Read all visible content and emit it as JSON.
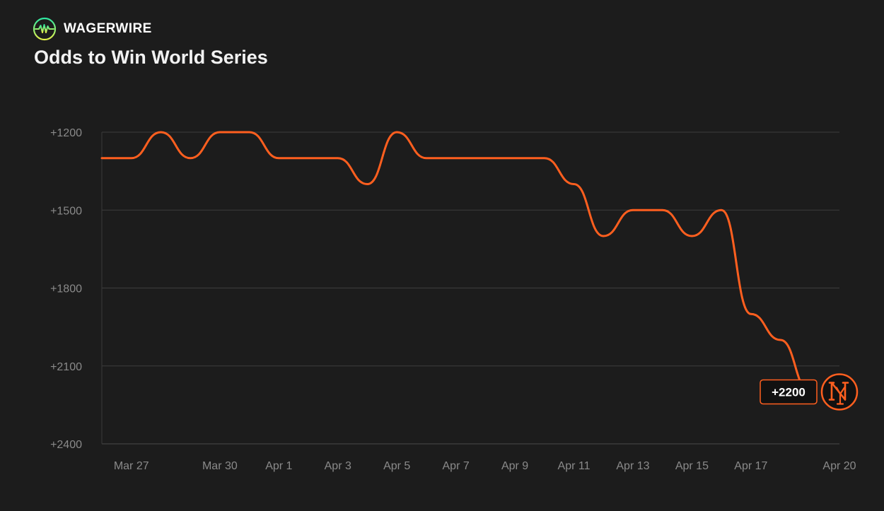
{
  "brand": {
    "name": "WAGERWIRE",
    "logo_icon": "heartbeat-pulse-icon"
  },
  "title": "Odds to Win World Series",
  "colors": {
    "background": "#1c1c1c",
    "line": "#ff5f1f",
    "grid": "#3d3d3d",
    "tick_text": "#8a8a8a",
    "logo_green": "#2ee6a0",
    "logo_yellow": "#e4f04a"
  },
  "chart_data": {
    "type": "line",
    "title": "Odds to Win World Series",
    "xlabel": "",
    "ylabel": "",
    "y_axis": {
      "reversed": true,
      "ylim": [
        1200,
        2400
      ],
      "ticks": [
        "+1200",
        "+1500",
        "+1800",
        "+2100",
        "+2400"
      ],
      "tick_values": [
        1200,
        1500,
        1800,
        2100,
        2400
      ]
    },
    "x_axis": {
      "range": [
        "2025-03-26",
        "2025-04-20"
      ],
      "ticks": [
        {
          "date": "2025-03-27",
          "label": "Mar 27"
        },
        {
          "date": "2025-03-30",
          "label": "Mar 30"
        },
        {
          "date": "2025-04-01",
          "label": "Apr 1"
        },
        {
          "date": "2025-04-03",
          "label": "Apr 3"
        },
        {
          "date": "2025-04-05",
          "label": "Apr 5"
        },
        {
          "date": "2025-04-07",
          "label": "Apr 7"
        },
        {
          "date": "2025-04-09",
          "label": "Apr 9"
        },
        {
          "date": "2025-04-11",
          "label": "Apr 11"
        },
        {
          "date": "2025-04-13",
          "label": "Apr 13"
        },
        {
          "date": "2025-04-15",
          "label": "Apr 15"
        },
        {
          "date": "2025-04-17",
          "label": "Apr 17"
        },
        {
          "date": "2025-04-20",
          "label": "Apr 20"
        }
      ]
    },
    "grid": true,
    "legend": "none",
    "series": [
      {
        "team_logo": "mets-ny-logo-icon",
        "color": "#ff5f1f",
        "points": [
          {
            "x": "2025-03-26",
            "y": 1300
          },
          {
            "x": "2025-03-27",
            "y": 1300
          },
          {
            "x": "2025-03-28",
            "y": 1200
          },
          {
            "x": "2025-03-29",
            "y": 1300
          },
          {
            "x": "2025-03-30",
            "y": 1200
          },
          {
            "x": "2025-03-31",
            "y": 1200
          },
          {
            "x": "2025-04-01",
            "y": 1300
          },
          {
            "x": "2025-04-02",
            "y": 1300
          },
          {
            "x": "2025-04-03",
            "y": 1300
          },
          {
            "x": "2025-04-04",
            "y": 1400
          },
          {
            "x": "2025-04-05",
            "y": 1200
          },
          {
            "x": "2025-04-06",
            "y": 1300
          },
          {
            "x": "2025-04-07",
            "y": 1300
          },
          {
            "x": "2025-04-08",
            "y": 1300
          },
          {
            "x": "2025-04-09",
            "y": 1300
          },
          {
            "x": "2025-04-10",
            "y": 1300
          },
          {
            "x": "2025-04-11",
            "y": 1400
          },
          {
            "x": "2025-04-12",
            "y": 1600
          },
          {
            "x": "2025-04-13",
            "y": 1500
          },
          {
            "x": "2025-04-14",
            "y": 1500
          },
          {
            "x": "2025-04-15",
            "y": 1600
          },
          {
            "x": "2025-04-16",
            "y": 1500
          },
          {
            "x": "2025-04-17",
            "y": 1900
          },
          {
            "x": "2025-04-18",
            "y": 2000
          },
          {
            "x": "2025-04-19",
            "y": 2200
          }
        ]
      }
    ],
    "annotations": [
      {
        "x": "2025-04-19",
        "y": 2200,
        "text": "+2200"
      }
    ]
  }
}
